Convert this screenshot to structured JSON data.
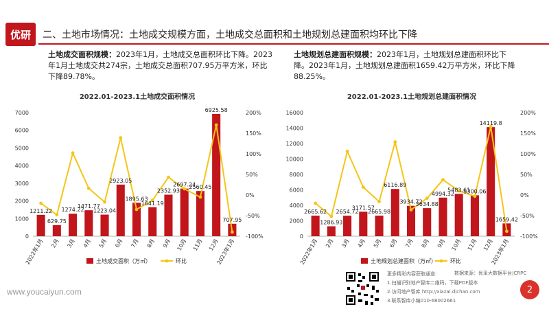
{
  "header": {
    "logo_text": "优研",
    "title": "二、土地市场情况：土地成交规模方面，土地成交总面积和土地规划总建面积均环比下降"
  },
  "left_desc": {
    "label": "土地成交面积规模：",
    "text": "2023年1月，土地成交总面积环比下降。2023年1月土地成交共274宗，土地成交总面积707.95万平方米，环比下降89.78%。"
  },
  "right_desc": {
    "label": "土地规划总建面积规模：",
    "text": "2023年1月，土地规划总建面积环比下降。2023年1月，土地规划总建面积1659.42万平方米，环比下降88.25%。"
  },
  "chart_data": [
    {
      "type": "bar",
      "title": "2022.01-2023.1土地成交面积情况",
      "categories": [
        "2022年1月",
        "2月",
        "3月",
        "4月",
        "5月",
        "6月",
        "7月",
        "8月",
        "9月",
        "10月",
        "11月",
        "12月",
        "2023年1月"
      ],
      "series": [
        {
          "name": "土地成交面积（万㎡）",
          "type": "bar",
          "axis": "left",
          "color": "#c0161c",
          "values": [
            1211.22,
            629.75,
            1274.22,
            1471.77,
            1223.04,
            2923.05,
            1895.63,
            1641.19,
            2352.93,
            2697.24,
            2560.45,
            6925.58,
            707.95
          ]
        },
        {
          "name": "环比",
          "type": "line",
          "axis": "right",
          "color": "#f5c518",
          "values": [
            -20,
            -48,
            102,
            16,
            -17,
            139,
            -35,
            -13,
            43,
            15,
            -5,
            170,
            -90
          ]
        }
      ],
      "ylim": [
        0,
        7000
      ],
      "y_ticks": [
        0,
        1000,
        2000,
        3000,
        4000,
        5000,
        6000,
        7000
      ],
      "y2lim": [
        -100,
        200
      ],
      "y2_ticks": [
        "-100%",
        "-50%",
        "0%",
        "50%",
        "100%",
        "150%",
        "200%"
      ],
      "legend": "bottom"
    },
    {
      "type": "bar",
      "title": "2022.01-2023.1土地规划总建面积情况",
      "categories": [
        "2022年1月",
        "2月",
        "3月",
        "4月",
        "5月",
        "6月",
        "7月",
        "8月",
        "9月",
        "10月",
        "11月",
        "12月",
        "2023年1月"
      ],
      "series": [
        {
          "name": "土地规划总建面积（万㎡）",
          "type": "bar",
          "axis": "left",
          "color": "#c0161c",
          "values": [
            2665.62,
            1286.93,
            2654.72,
            3171.57,
            2665.98,
            6116.89,
            3934.72,
            3634.88,
            4994.32,
            5483.61,
            5300.06,
            14119.8,
            1659.42
          ]
        },
        {
          "name": "环比",
          "type": "line",
          "axis": "right",
          "color": "#f5c518",
          "values": [
            -20,
            -52,
            106,
            19,
            -16,
            129,
            -36,
            -8,
            37,
            10,
            -3,
            166,
            -88
          ]
        }
      ],
      "ylim": [
        0,
        16000
      ],
      "y_ticks": [
        0,
        2000,
        4000,
        6000,
        8000,
        10000,
        12000,
        14000,
        16000
      ],
      "y2lim": [
        -100,
        200
      ],
      "y2_ticks": [
        "-100%",
        "-50%",
        "0%",
        "50%",
        "100%",
        "150%",
        "200%"
      ],
      "legend": "bottom"
    }
  ],
  "footer": {
    "url": "www.youcaiyun.com",
    "page": "2",
    "more_title": "更多精彩内容获取通道:",
    "source": "数据来源：优采大数据平台|CRPC",
    "items": [
      "1.扫描识别地产智库二维码，下载PDF版本",
      "2.访问地产智库 http://xiazai.dichan.com",
      "3.联系智库小编010-68002661"
    ]
  }
}
